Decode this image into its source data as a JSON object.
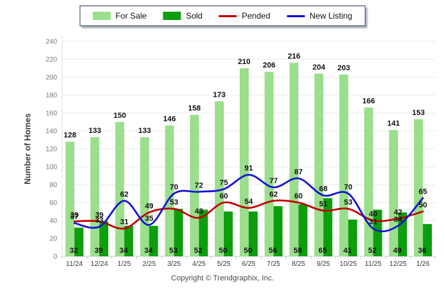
{
  "legend": {
    "items": [
      {
        "label": "For Sale",
        "type": "box",
        "color": "#9bde8c"
      },
      {
        "label": "Sold",
        "type": "box",
        "color": "#0d9e0d"
      },
      {
        "label": "Pended",
        "type": "line",
        "color": "#c00000"
      },
      {
        "label": "New Listing",
        "type": "line",
        "color": "#1212d2"
      }
    ]
  },
  "chart_data": {
    "type": "combo",
    "categories": [
      "11/24",
      "12/24",
      "1/25",
      "2/25",
      "3/25",
      "4/25",
      "5/25",
      "6/25",
      "7/25",
      "8/25",
      "9/25",
      "10/25",
      "11/25",
      "12/25",
      "1/26"
    ],
    "series": [
      {
        "name": "For Sale",
        "kind": "bar",
        "color": "#9bde8c",
        "values": [
          128,
          133,
          150,
          133,
          146,
          158,
          173,
          210,
          206,
          216,
          204,
          203,
          166,
          141,
          153
        ]
      },
      {
        "name": "Sold",
        "kind": "bar",
        "color": "#0d9e0d",
        "values": [
          32,
          39,
          34,
          34,
          53,
          52,
          50,
          50,
          56,
          58,
          65,
          41,
          52,
          49,
          36
        ]
      },
      {
        "name": "Pended",
        "kind": "line",
        "color": "#c00000",
        "values": [
          39,
          39,
          31,
          49,
          53,
          43,
          60,
          54,
          62,
          60,
          51,
          53,
          40,
          42,
          50
        ]
      },
      {
        "name": "New Listing",
        "kind": "line",
        "color": "#1212d2",
        "values": [
          37,
          33,
          62,
          35,
          70,
          72,
          75,
          91,
          77,
          87,
          68,
          70,
          31,
          34,
          65
        ]
      }
    ],
    "title": "",
    "xlabel": "",
    "ylabel": "Number of Homes",
    "ylim": [
      0,
      240
    ],
    "yticks": [
      0,
      20,
      40,
      60,
      80,
      100,
      120,
      140,
      160,
      180,
      200,
      220,
      240
    ],
    "grid": true,
    "legend_position": "top"
  },
  "footer": {
    "copyright": "Copyright © Trendgraphix, Inc."
  }
}
